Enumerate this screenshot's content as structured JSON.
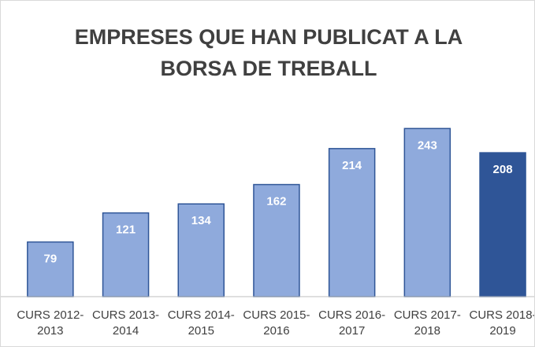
{
  "chart_data": {
    "type": "bar",
    "title": "EMPRESES QUE HAN PUBLICAT A LA BORSA DE TREBALL",
    "categories": [
      "CURS 2012-2013",
      "CURS 2013-2014",
      "CURS 2014-2015",
      "CURS 2015-2016",
      "CURS 2016-2017",
      "CURS 2017-2018",
      "CURS 2018-2019"
    ],
    "values": [
      79,
      121,
      134,
      162,
      214,
      243,
      208
    ],
    "colors": [
      "#8faadc",
      "#8faadc",
      "#8faadc",
      "#8faadc",
      "#8faadc",
      "#8faadc",
      "#2f5597"
    ],
    "edge_color": "#2f5597",
    "ylim": [
      0,
      290
    ]
  }
}
